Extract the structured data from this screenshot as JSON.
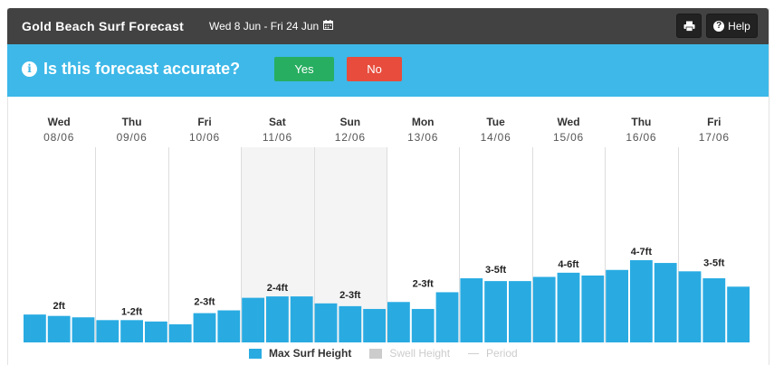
{
  "header": {
    "title": "Gold Beach Surf Forecast",
    "date_range": "Wed 8 Jun - Fri 24 Jun",
    "help_label": "Help"
  },
  "banner": {
    "question": "Is this forecast accurate?",
    "yes_label": "Yes",
    "no_label": "No"
  },
  "colors": {
    "header_bg": "#424242",
    "banner_bg": "#3db8e8",
    "bar": "#29abe2",
    "yes": "#27ae60",
    "no": "#e74c3c",
    "weekend_shade": "#f4f4f4"
  },
  "icons": [
    "calendar-icon",
    "print-icon",
    "help-icon",
    "info-icon"
  ],
  "chart_data": {
    "type": "bar",
    "days": [
      {
        "dow": "Wed",
        "date": "08/06",
        "label": "2ft",
        "weekend": false
      },
      {
        "dow": "Thu",
        "date": "09/06",
        "label": "1-2ft",
        "weekend": false
      },
      {
        "dow": "Fri",
        "date": "10/06",
        "label": "2-3ft",
        "weekend": false
      },
      {
        "dow": "Sat",
        "date": "11/06",
        "label": "2-4ft",
        "weekend": true
      },
      {
        "dow": "Sun",
        "date": "12/06",
        "label": "2-3ft",
        "weekend": true
      },
      {
        "dow": "Mon",
        "date": "13/06",
        "label": "2-3ft",
        "weekend": false
      },
      {
        "dow": "Tue",
        "date": "14/06",
        "label": "3-5ft",
        "weekend": false
      },
      {
        "dow": "Wed",
        "date": "15/06",
        "label": "4-6ft",
        "weekend": false
      },
      {
        "dow": "Thu",
        "date": "16/06",
        "label": "4-7ft",
        "weekend": false
      },
      {
        "dow": "Fri",
        "date": "17/06",
        "label": "3-5ft",
        "weekend": false
      }
    ],
    "series": [
      {
        "name": "Max Surf Height",
        "values": [
          2.0,
          1.9,
          1.8,
          1.6,
          1.6,
          1.5,
          1.3,
          2.1,
          2.3,
          3.2,
          3.3,
          3.3,
          2.8,
          2.6,
          2.4,
          2.9,
          2.4,
          3.6,
          4.6,
          4.4,
          4.4,
          4.7,
          5.0,
          4.8,
          5.2,
          5.9,
          5.7,
          5.1,
          4.6,
          4.0
        ]
      }
    ],
    "legend": [
      {
        "label": "Max Surf Height",
        "color": "#29abe2"
      },
      {
        "label": "Swell Height",
        "color": "#cccccc"
      },
      {
        "label": "Period",
        "color": "#cfcfcf"
      }
    ],
    "ylim": [
      0,
      14
    ],
    "grid": true,
    "legend_position": "bottom-center"
  }
}
